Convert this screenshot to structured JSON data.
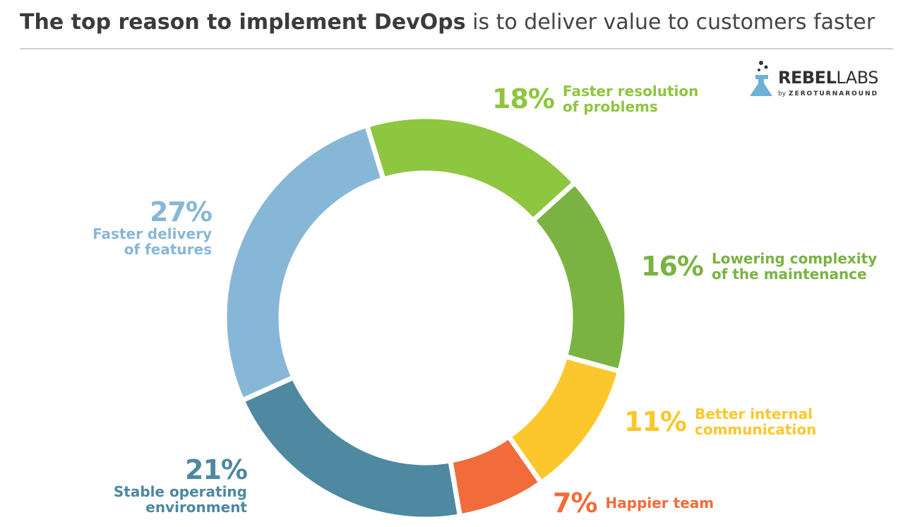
{
  "title": {
    "bold": "The top reason to implement DevOps",
    "rest": "is to deliver value to customers faster"
  },
  "logo": {
    "name_bold": "REBEL",
    "name_rest": "LABS",
    "by": "by",
    "sub_zero": "ZERO",
    "sub_rest": "TURNAROUND",
    "accent": "#6db0d8"
  },
  "chart_data": {
    "type": "pie",
    "title": "The top reason to implement DevOps is to deliver value to customers faster",
    "slices": [
      {
        "label_lines": [
          "Faster resolution",
          "of problems"
        ],
        "pct_label": "18%",
        "value": 18,
        "color": "#8dc63f"
      },
      {
        "label_lines": [
          "Lowering complexity",
          "of the maintenance"
        ],
        "pct_label": "16%",
        "value": 16,
        "color": "#7ab342"
      },
      {
        "label_lines": [
          "Better internal",
          "communication"
        ],
        "pct_label": "11%",
        "value": 11,
        "color": "#fcc72c"
      },
      {
        "label_lines": [
          "Happier team"
        ],
        "pct_label": "7%",
        "value": 7,
        "color": "#f26b3a"
      },
      {
        "label_lines": [
          "Stable operating",
          "environment"
        ],
        "pct_label": "21%",
        "value": 21,
        "color": "#4e88a1"
      },
      {
        "label_lines": [
          "Faster delivery",
          "of features"
        ],
        "pct_label": "27%",
        "value": 27,
        "color": "#87b7d6"
      }
    ]
  }
}
